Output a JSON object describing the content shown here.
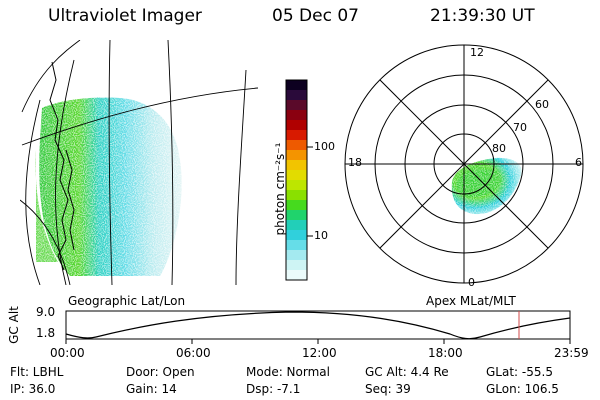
{
  "header": {
    "instrument": "Ultraviolet Imager",
    "date": "05 Dec 07",
    "time": "21:39:30 UT"
  },
  "colorbar": {
    "unit_label": "photon cm⁻²s⁻¹",
    "ticks": [
      "100",
      "10"
    ],
    "colors": [
      "#0d0020",
      "#2a0a3a",
      "#5a0a2a",
      "#8a0010",
      "#b00000",
      "#d81a00",
      "#ee5a00",
      "#f49400",
      "#f2c400",
      "#e2dc00",
      "#bde600",
      "#8ae000",
      "#46da1e",
      "#20d36c",
      "#22cfb8",
      "#30d0dc",
      "#66dde8",
      "#a4eaf0",
      "#cef4f4",
      "#ebfbfb"
    ]
  },
  "projections": {
    "left_label": "Geographic Lat/Lon",
    "right_label": "Apex MLat/MLT"
  },
  "polar": {
    "mlt_labels": {
      "top": "12",
      "left": "18",
      "right": "6",
      "bottom": "0"
    },
    "lat_labels": [
      "60",
      "70",
      "80"
    ]
  },
  "altitude_plot": {
    "ylabel": "GC Alt",
    "ytick_top": "9.0",
    "ytick_bottom": "1.8",
    "xticks": [
      "00:00",
      "06:00",
      "12:00",
      "18:00",
      "23:59"
    ],
    "marker_color": "#d04848"
  },
  "info": {
    "filter": "Flt: LBHL",
    "ip": "IP: 36.0",
    "door": "Door: Open",
    "gain": "Gain: 14",
    "mode": "Mode: Normal",
    "dsp": "Dsp:   -7.1",
    "gc_alt": "GC Alt: 4.4 Re",
    "seq": "Seq: 39",
    "glat": "GLat: -55.5",
    "glon": "GLon: 106.5"
  }
}
